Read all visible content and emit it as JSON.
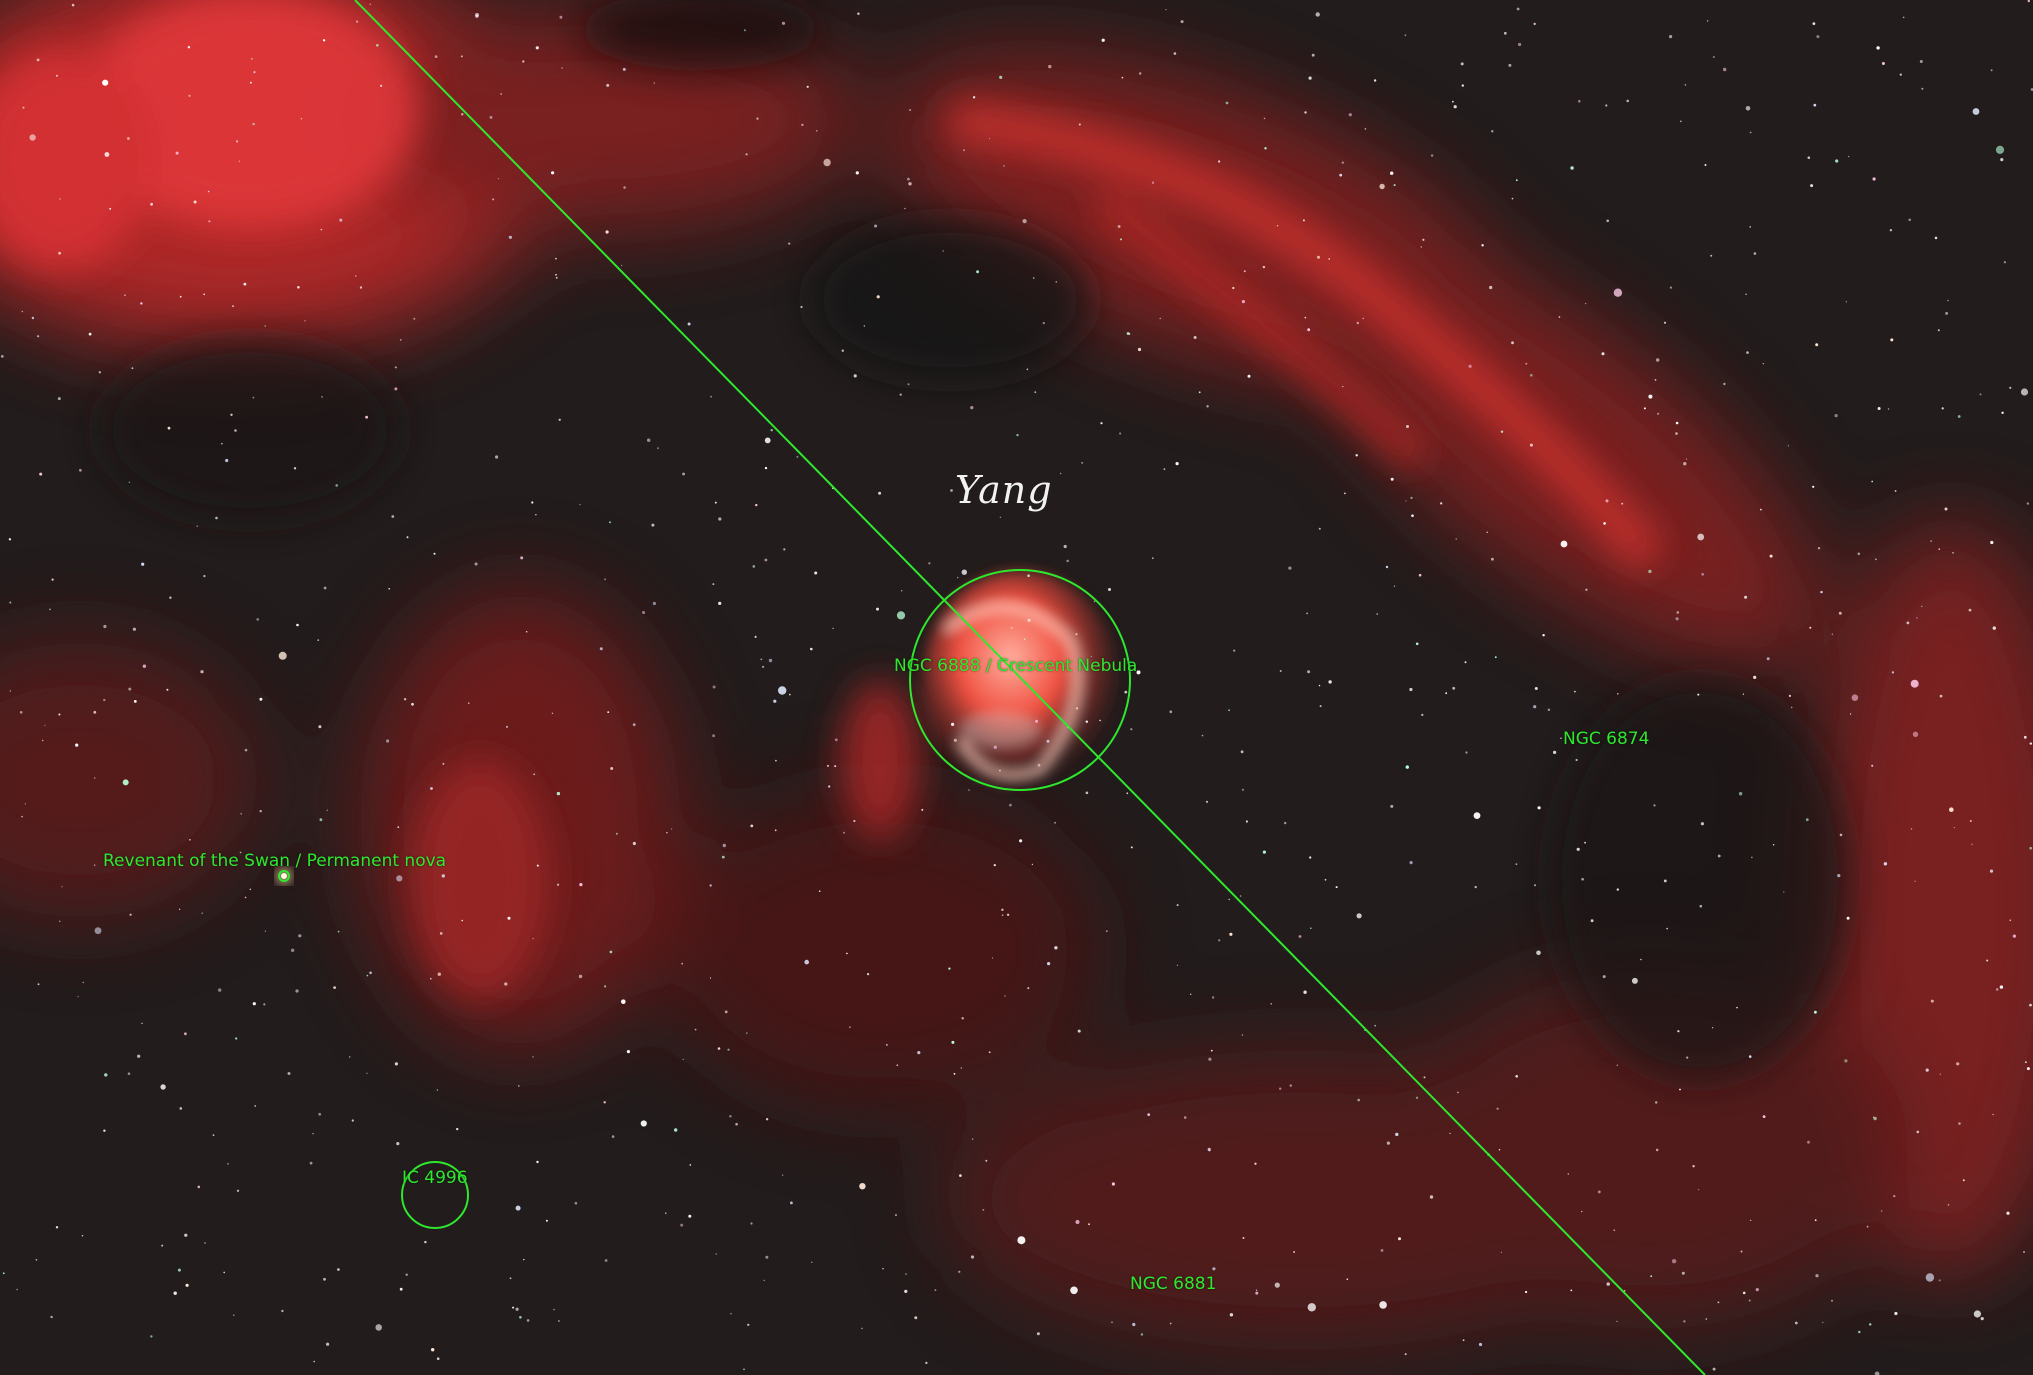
{
  "image": {
    "subject": "Crescent Nebula region in Cygnus",
    "signature": "Yang",
    "annotation_color": "#2ee82e"
  },
  "annotations": [
    {
      "id": "ngc6888",
      "label": "NGC 6888 / Crescent Nebula"
    },
    {
      "id": "ngc6874",
      "label": "NGC 6874"
    },
    {
      "id": "nova",
      "label": "Revenant of the Swan / Permanent nova"
    },
    {
      "id": "ic4996",
      "label": "IC 4996"
    },
    {
      "id": "ngc6881",
      "label": "NGC 6881"
    }
  ]
}
